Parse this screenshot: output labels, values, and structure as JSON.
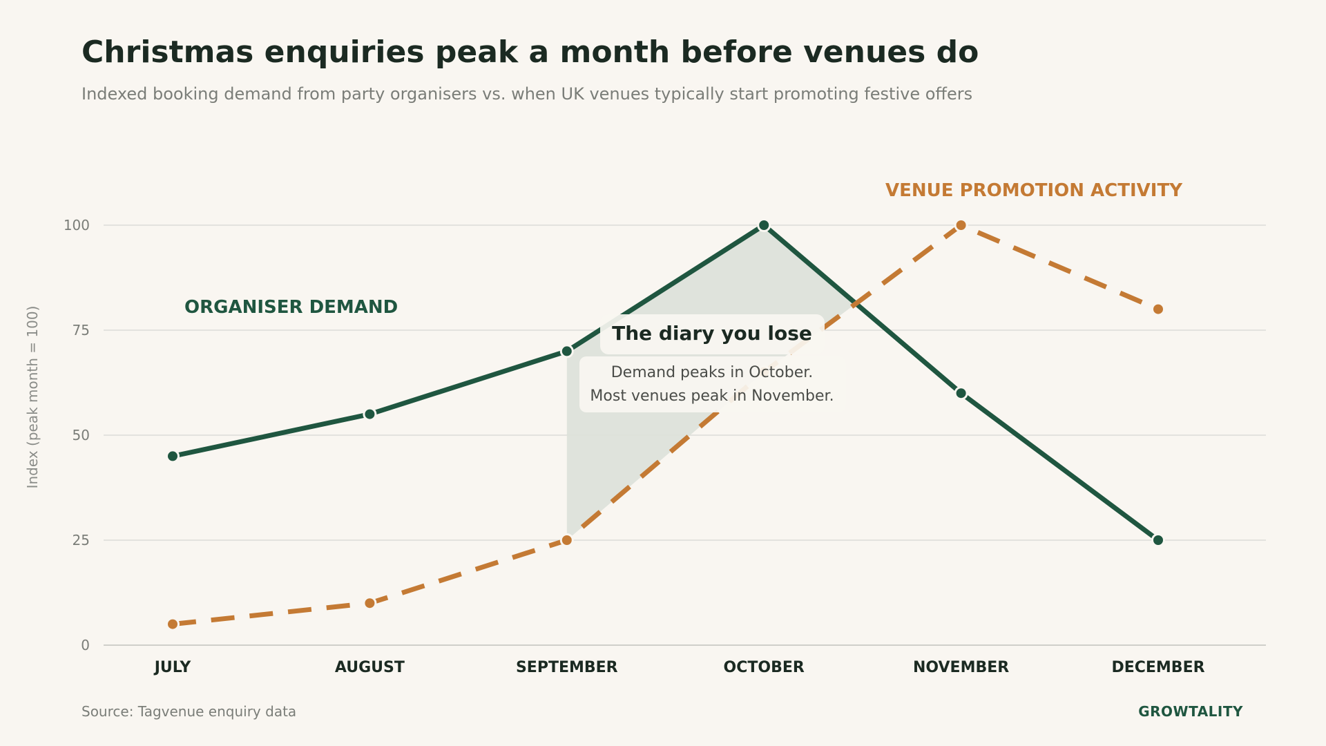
{
  "header": {
    "title": "Christmas enquiries peak a month before venues do",
    "subtitle": "Indexed booking demand from party organisers vs. when UK venues typically start promoting festive offers"
  },
  "footer": {
    "source": "Source: Tagvenue enquiry data",
    "brand": "GROWTALITY"
  },
  "chart_data": {
    "type": "line",
    "categories": [
      "JULY",
      "AUGUST",
      "SEPTEMBER",
      "OCTOBER",
      "NOVEMBER",
      "DECEMBER"
    ],
    "ylabel": "Index  (peak month = 100)",
    "ylim": [
      0,
      110
    ],
    "yticks": [
      0,
      25,
      50,
      75,
      100
    ],
    "grid": true,
    "series": [
      {
        "name": "ORGANISER DEMAND",
        "values": [
          45,
          55,
          70,
          100,
          60,
          25
        ],
        "color": "#1f5640",
        "style": "solid"
      },
      {
        "name": "VENUE PROMOTION ACTIVITY",
        "values": [
          5,
          10,
          25,
          65,
          100,
          80
        ],
        "color": "#c47a34",
        "style": "dashed"
      }
    ],
    "shaded_region": {
      "from": "SEPTEMBER",
      "to": "OCTOBER",
      "between": [
        "ORGANISER DEMAND",
        "VENUE PROMOTION ACTIVITY"
      ],
      "color": "#dde2da"
    },
    "annotation": {
      "title": "The diary you lose",
      "lines": [
        "Demand peaks in October.",
        "Most venues peak in November."
      ]
    }
  }
}
